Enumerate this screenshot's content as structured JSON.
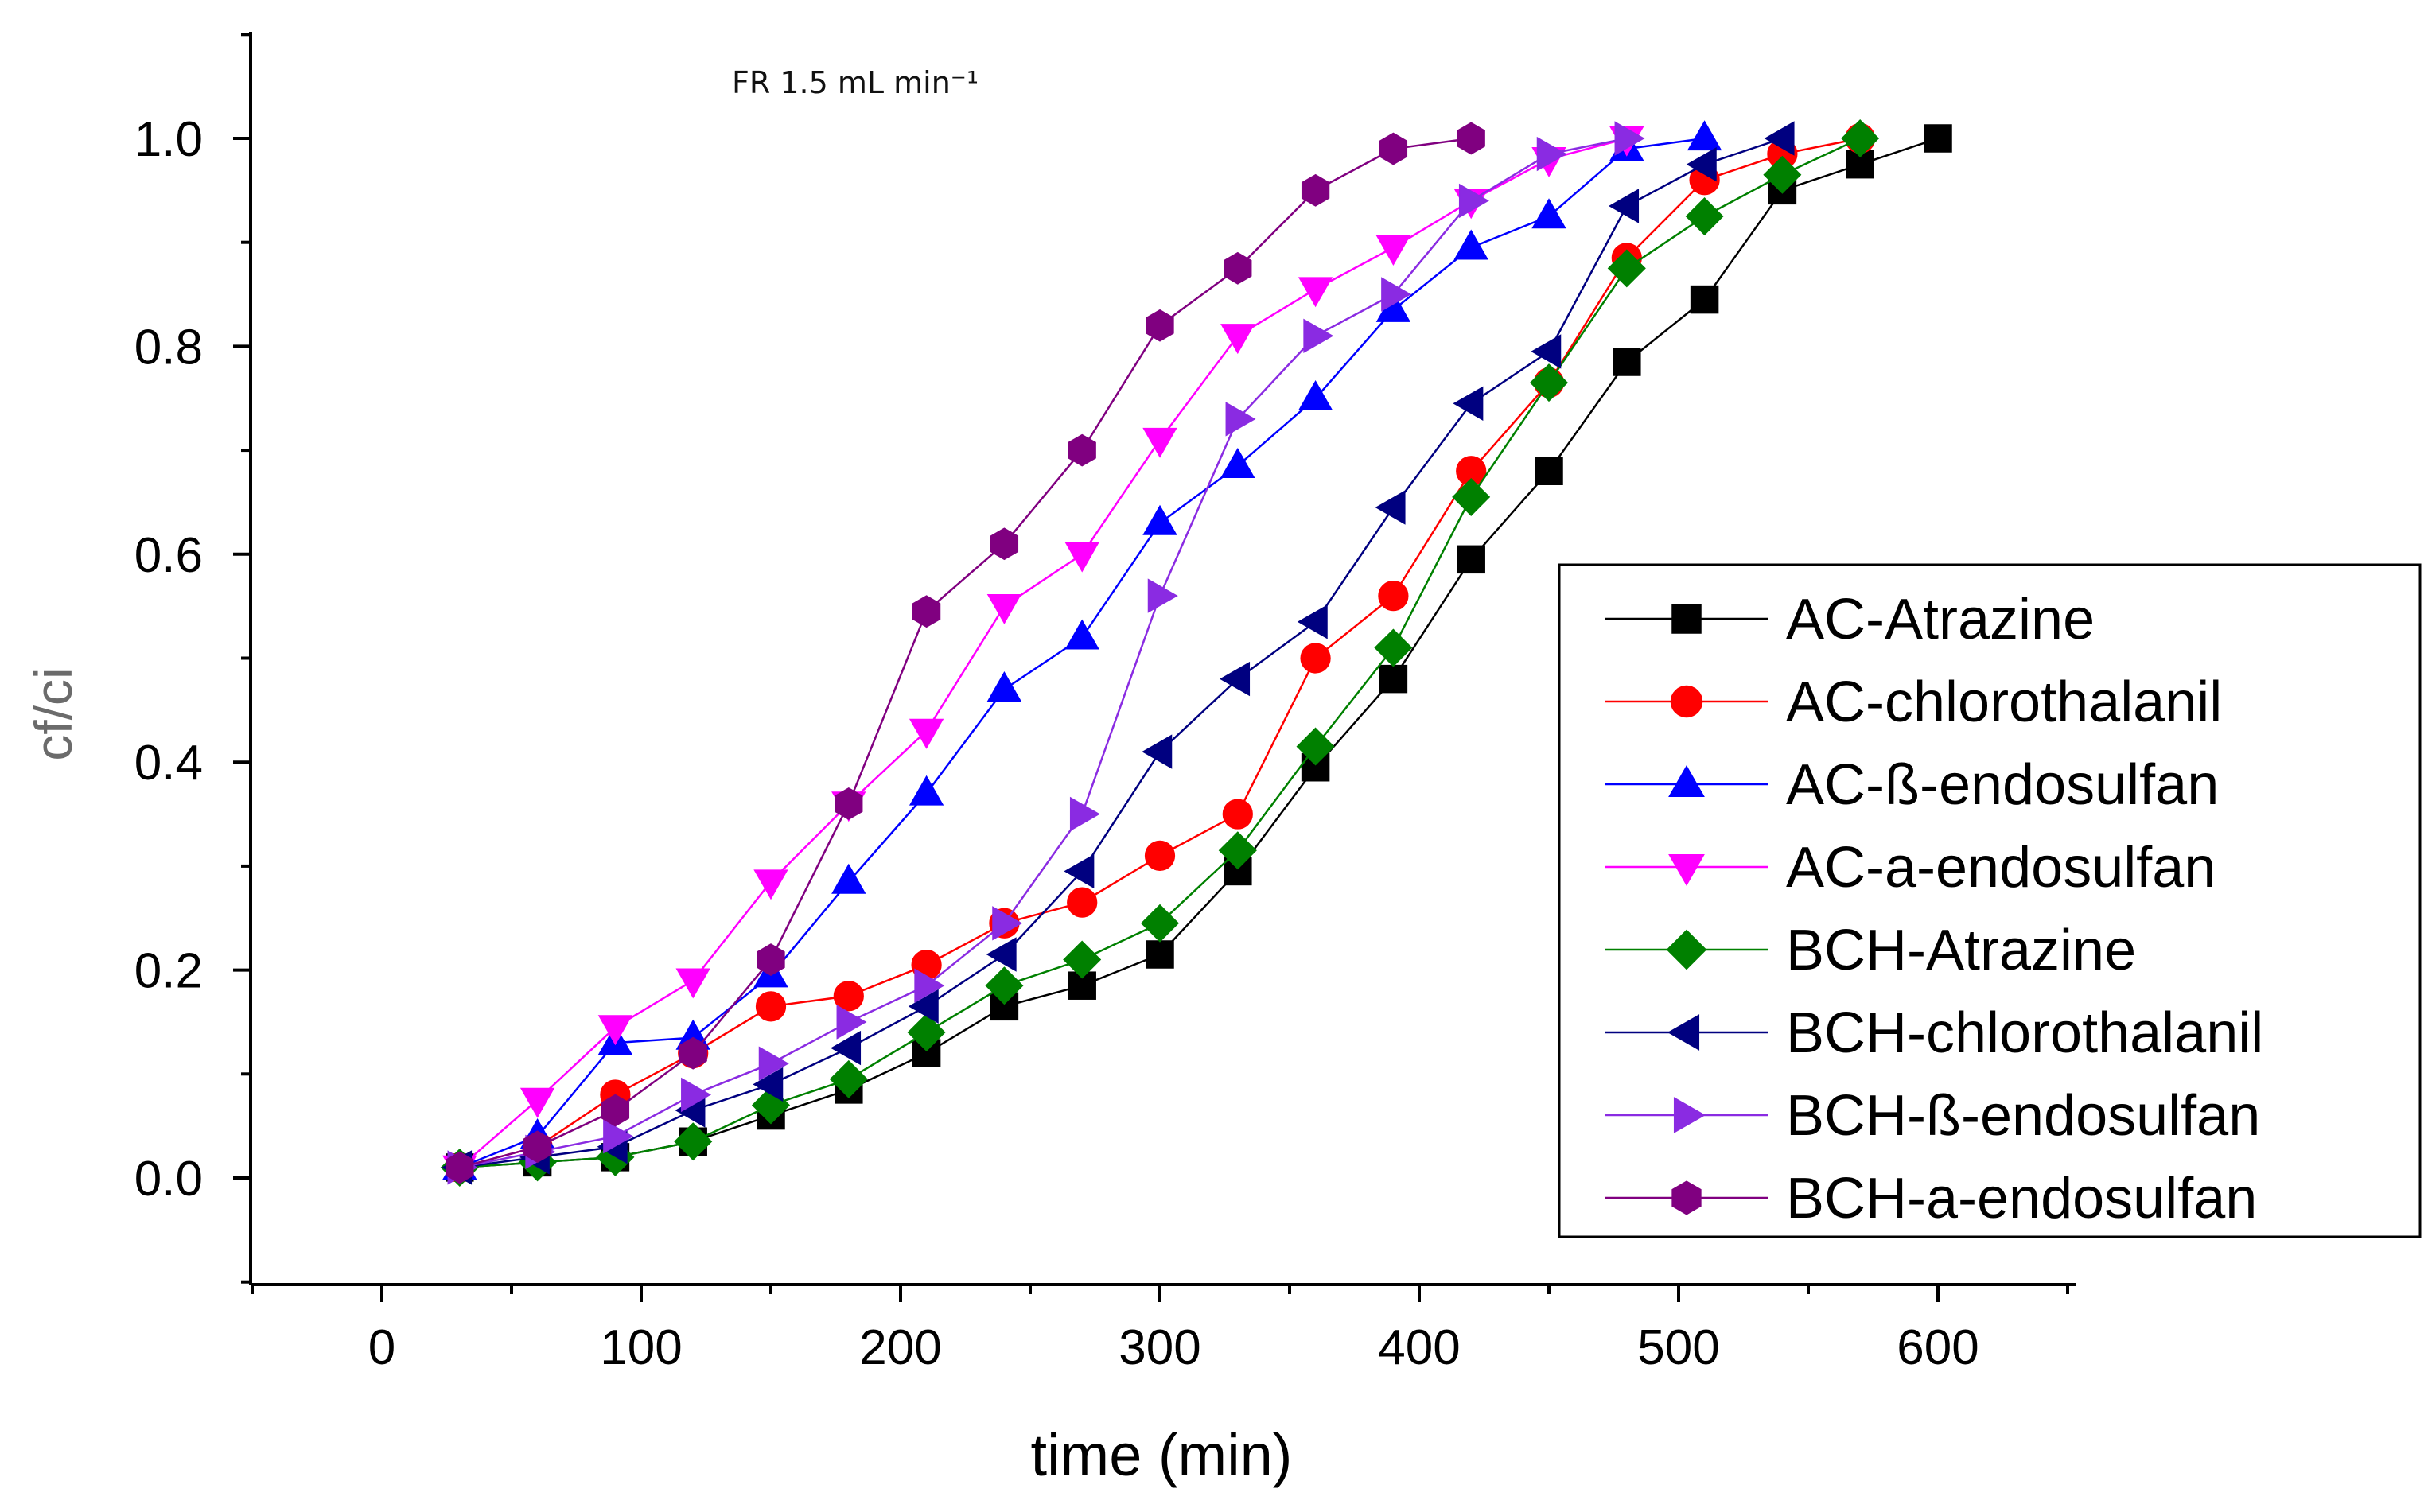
{
  "chart_data": {
    "type": "line",
    "title": "",
    "annotation": "FR 1.5 mL min⁻¹",
    "xlabel": "time (min)",
    "ylabel": "cf/ci",
    "xlim": [
      -50,
      650
    ],
    "ylim": [
      -0.1,
      1.1
    ],
    "xticks": [
      0,
      100,
      200,
      300,
      400,
      500,
      600
    ],
    "yticks": [
      0.0,
      0.2,
      0.4,
      0.6,
      0.8,
      1.0
    ],
    "xtick_labels": [
      "0",
      "100",
      "200",
      "300",
      "400",
      "500",
      "600"
    ],
    "ytick_labels": [
      "0.0",
      "0.2",
      "0.4",
      "0.6",
      "0.8",
      "1.0"
    ],
    "grid": false,
    "legend_position": "bottom-right",
    "series": [
      {
        "name": "AC-Atrazine",
        "color": "#000000",
        "marker": "square",
        "x": [
          30,
          60,
          90,
          120,
          150,
          180,
          210,
          240,
          270,
          300,
          330,
          360,
          390,
          420,
          450,
          480,
          510,
          540,
          570,
          600
        ],
        "y": [
          0.01,
          0.015,
          0.02,
          0.035,
          0.06,
          0.085,
          0.12,
          0.165,
          0.185,
          0.215,
          0.295,
          0.395,
          0.48,
          0.595,
          0.68,
          0.785,
          0.845,
          0.95,
          0.975,
          1.0
        ]
      },
      {
        "name": "AC-chlorothalanil",
        "color": "#ff0000",
        "marker": "circle",
        "x": [
          30,
          60,
          90,
          120,
          150,
          180,
          210,
          240,
          270,
          300,
          330,
          360,
          390,
          420,
          450,
          480,
          510,
          540,
          570
        ],
        "y": [
          0.01,
          0.03,
          0.08,
          0.12,
          0.165,
          0.175,
          0.205,
          0.245,
          0.265,
          0.31,
          0.35,
          0.5,
          0.56,
          0.68,
          0.765,
          0.885,
          0.96,
          0.985,
          1.0
        ]
      },
      {
        "name": "AC-ß-endosulfan",
        "color": "#0000ff",
        "marker": "triangle-up",
        "x": [
          30,
          60,
          90,
          120,
          150,
          180,
          210,
          240,
          270,
          300,
          330,
          360,
          390,
          420,
          450,
          480,
          510
        ],
        "y": [
          0.01,
          0.04,
          0.13,
          0.135,
          0.195,
          0.285,
          0.37,
          0.47,
          0.52,
          0.63,
          0.685,
          0.75,
          0.835,
          0.895,
          0.925,
          0.99,
          1.0
        ]
      },
      {
        "name": "AC-a-endosulfan",
        "color": "#ff00ff",
        "marker": "triangle-down",
        "x": [
          30,
          60,
          90,
          120,
          150,
          180,
          210,
          240,
          270,
          300,
          330,
          360,
          390,
          420,
          450,
          480
        ],
        "y": [
          0.01,
          0.075,
          0.145,
          0.19,
          0.285,
          0.36,
          0.43,
          0.55,
          0.6,
          0.71,
          0.81,
          0.855,
          0.895,
          0.94,
          0.98,
          1.0
        ]
      },
      {
        "name": "BCH-Atrazine",
        "color": "#008000",
        "marker": "diamond",
        "x": [
          30,
          60,
          90,
          120,
          150,
          180,
          210,
          240,
          270,
          300,
          330,
          360,
          390,
          420,
          450,
          480,
          510,
          540,
          570
        ],
        "y": [
          0.01,
          0.015,
          0.02,
          0.035,
          0.07,
          0.095,
          0.14,
          0.185,
          0.21,
          0.245,
          0.315,
          0.415,
          0.51,
          0.655,
          0.765,
          0.875,
          0.925,
          0.965,
          1.0
        ]
      },
      {
        "name": "BCH-chlorothalanil",
        "color": "#000080",
        "marker": "triangle-left",
        "x": [
          30,
          60,
          90,
          120,
          150,
          180,
          210,
          240,
          270,
          300,
          330,
          360,
          390,
          420,
          450,
          480,
          510,
          540
        ],
        "y": [
          0.01,
          0.02,
          0.03,
          0.065,
          0.09,
          0.125,
          0.165,
          0.215,
          0.295,
          0.41,
          0.48,
          0.535,
          0.645,
          0.745,
          0.795,
          0.935,
          0.975,
          1.0
        ]
      },
      {
        "name": "BCH-ß-endosulfan",
        "color": "#8a2be2",
        "marker": "triangle-right",
        "x": [
          30,
          60,
          90,
          120,
          150,
          180,
          210,
          240,
          270,
          300,
          330,
          360,
          390,
          420,
          450,
          480
        ],
        "y": [
          0.01,
          0.025,
          0.04,
          0.08,
          0.11,
          0.15,
          0.185,
          0.245,
          0.35,
          0.56,
          0.73,
          0.81,
          0.85,
          0.94,
          0.985,
          1.0
        ]
      },
      {
        "name": "BCH-a-endosulfan",
        "color": "#800080",
        "marker": "hexagon",
        "x": [
          30,
          60,
          90,
          120,
          150,
          180,
          210,
          240,
          270,
          300,
          330,
          360,
          390,
          420
        ],
        "y": [
          0.01,
          0.03,
          0.065,
          0.12,
          0.21,
          0.36,
          0.545,
          0.61,
          0.7,
          0.82,
          0.875,
          0.95,
          0.99,
          1.0
        ]
      }
    ]
  }
}
